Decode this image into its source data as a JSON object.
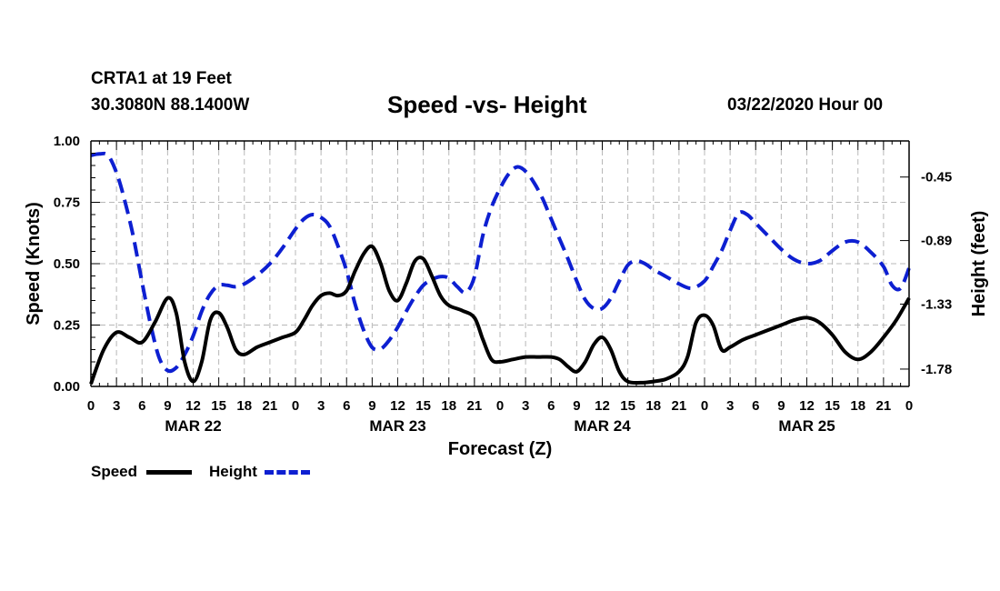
{
  "header": {
    "station": "CRTA1 at 19 Feet",
    "coordinates": "30.3080N 88.1400W",
    "title": "Speed -vs- Height",
    "datetime": "03/22/2020 Hour 00"
  },
  "legend": {
    "speed_label": "Speed",
    "height_label": "Height"
  },
  "colors": {
    "speed": "#000000",
    "height": "#0d1fd1",
    "grid": "#b8b8b8"
  },
  "chart_data": {
    "type": "line",
    "title": "Speed -vs- Height",
    "xlabel": "Forecast (Z)",
    "ylabel_left": "Speed (Knots)",
    "ylabel_right": "Height (feet)",
    "x_unit": "hours from 03/22/2020 00Z",
    "xlim": [
      0,
      96
    ],
    "x_ticks": [
      0,
      3,
      6,
      9,
      12,
      15,
      18,
      21,
      24,
      27,
      30,
      33,
      36,
      39,
      42,
      45,
      48,
      51,
      54,
      57,
      60,
      63,
      66,
      69,
      72,
      75,
      78,
      81,
      84,
      87,
      90,
      93,
      96
    ],
    "x_tick_labels": [
      "0",
      "3",
      "6",
      "9",
      "12",
      "15",
      "18",
      "21",
      "0",
      "3",
      "6",
      "9",
      "12",
      "15",
      "18",
      "21",
      "0",
      "3",
      "6",
      "9",
      "12",
      "15",
      "18",
      "21",
      "0",
      "3",
      "6",
      "9",
      "12",
      "15",
      "18",
      "21",
      "0"
    ],
    "day_labels": [
      {
        "text": "MAR 22",
        "x": 12
      },
      {
        "text": "MAR 23",
        "x": 36
      },
      {
        "text": "MAR 24",
        "x": 60
      },
      {
        "text": "MAR 25",
        "x": 84
      }
    ],
    "y_left": {
      "lim": [
        0,
        1
      ],
      "ticks": [
        0,
        0.25,
        0.5,
        0.75,
        1.0
      ],
      "tick_labels": [
        "0.00",
        "0.25",
        "0.50",
        "0.75",
        "1.00"
      ]
    },
    "y_right": {
      "lim": [
        -1.9,
        -0.2
      ],
      "ticks": [
        -0.45,
        -0.89,
        -1.33,
        -1.78
      ],
      "tick_labels": [
        "-0.45",
        "-0.89",
        "-1.33",
        "-1.78"
      ]
    },
    "grid": true,
    "series": [
      {
        "name": "Speed",
        "axis": "left",
        "style": "solid",
        "points": [
          [
            0,
            0.01
          ],
          [
            1.5,
            0.15
          ],
          [
            3,
            0.22
          ],
          [
            4.5,
            0.2
          ],
          [
            6,
            0.18
          ],
          [
            7.5,
            0.26
          ],
          [
            9,
            0.36
          ],
          [
            10,
            0.3
          ],
          [
            11,
            0.1
          ],
          [
            12,
            0.02
          ],
          [
            13,
            0.1
          ],
          [
            14,
            0.27
          ],
          [
            15,
            0.3
          ],
          [
            16,
            0.24
          ],
          [
            17,
            0.15
          ],
          [
            18,
            0.13
          ],
          [
            19.5,
            0.16
          ],
          [
            21,
            0.18
          ],
          [
            22.5,
            0.2
          ],
          [
            24,
            0.22
          ],
          [
            25,
            0.27
          ],
          [
            26,
            0.33
          ],
          [
            27,
            0.37
          ],
          [
            28,
            0.38
          ],
          [
            29,
            0.37
          ],
          [
            30,
            0.39
          ],
          [
            31,
            0.47
          ],
          [
            32,
            0.54
          ],
          [
            33,
            0.57
          ],
          [
            34,
            0.5
          ],
          [
            35,
            0.39
          ],
          [
            36,
            0.35
          ],
          [
            37,
            0.42
          ],
          [
            38,
            0.51
          ],
          [
            39,
            0.52
          ],
          [
            40,
            0.45
          ],
          [
            41,
            0.37
          ],
          [
            42,
            0.33
          ],
          [
            43.5,
            0.31
          ],
          [
            45,
            0.28
          ],
          [
            46,
            0.19
          ],
          [
            47,
            0.11
          ],
          [
            48,
            0.1
          ],
          [
            49.5,
            0.11
          ],
          [
            51,
            0.12
          ],
          [
            52.5,
            0.12
          ],
          [
            54,
            0.12
          ],
          [
            55,
            0.11
          ],
          [
            56,
            0.08
          ],
          [
            57,
            0.06
          ],
          [
            58,
            0.1
          ],
          [
            59,
            0.17
          ],
          [
            60,
            0.2
          ],
          [
            61,
            0.15
          ],
          [
            62,
            0.06
          ],
          [
            63,
            0.02
          ],
          [
            64.5,
            0.015
          ],
          [
            66,
            0.02
          ],
          [
            67.5,
            0.03
          ],
          [
            69,
            0.06
          ],
          [
            70,
            0.12
          ],
          [
            71,
            0.26
          ],
          [
            72,
            0.29
          ],
          [
            73,
            0.25
          ],
          [
            74,
            0.15
          ],
          [
            75,
            0.16
          ],
          [
            76.5,
            0.19
          ],
          [
            78,
            0.21
          ],
          [
            79.5,
            0.23
          ],
          [
            81,
            0.25
          ],
          [
            82.5,
            0.27
          ],
          [
            84,
            0.28
          ],
          [
            85.5,
            0.26
          ],
          [
            87,
            0.21
          ],
          [
            88.5,
            0.14
          ],
          [
            90,
            0.11
          ],
          [
            91.5,
            0.14
          ],
          [
            93,
            0.2
          ],
          [
            94.5,
            0.27
          ],
          [
            96,
            0.36
          ]
        ]
      },
      {
        "name": "Height",
        "axis": "right",
        "style": "dashed",
        "points": [
          [
            0,
            -0.3
          ],
          [
            1,
            -0.29
          ],
          [
            2,
            -0.3
          ],
          [
            3,
            -0.42
          ],
          [
            4,
            -0.62
          ],
          [
            5,
            -0.87
          ],
          [
            6,
            -1.18
          ],
          [
            7,
            -1.47
          ],
          [
            8,
            -1.7
          ],
          [
            9,
            -1.79
          ],
          [
            10,
            -1.77
          ],
          [
            11,
            -1.68
          ],
          [
            12,
            -1.55
          ],
          [
            13,
            -1.38
          ],
          [
            14,
            -1.26
          ],
          [
            15,
            -1.2
          ],
          [
            16,
            -1.2
          ],
          [
            17,
            -1.21
          ],
          [
            18,
            -1.19
          ],
          [
            19.5,
            -1.13
          ],
          [
            21,
            -1.05
          ],
          [
            22.5,
            -0.94
          ],
          [
            24,
            -0.81
          ],
          [
            25,
            -0.74
          ],
          [
            26,
            -0.71
          ],
          [
            27,
            -0.73
          ],
          [
            28,
            -0.79
          ],
          [
            29,
            -0.93
          ],
          [
            30,
            -1.1
          ],
          [
            31,
            -1.33
          ],
          [
            32,
            -1.51
          ],
          [
            33,
            -1.63
          ],
          [
            34,
            -1.64
          ],
          [
            35,
            -1.58
          ],
          [
            36,
            -1.49
          ],
          [
            37,
            -1.38
          ],
          [
            38,
            -1.28
          ],
          [
            39,
            -1.2
          ],
          [
            40,
            -1.16
          ],
          [
            41,
            -1.14
          ],
          [
            42,
            -1.15
          ],
          [
            43,
            -1.21
          ],
          [
            44,
            -1.25
          ],
          [
            45,
            -1.14
          ],
          [
            46,
            -0.85
          ],
          [
            47,
            -0.66
          ],
          [
            48,
            -0.53
          ],
          [
            49,
            -0.43
          ],
          [
            50,
            -0.38
          ],
          [
            51,
            -0.41
          ],
          [
            52,
            -0.49
          ],
          [
            53,
            -0.6
          ],
          [
            54,
            -0.74
          ],
          [
            55,
            -0.88
          ],
          [
            56,
            -1.02
          ],
          [
            57,
            -1.17
          ],
          [
            58,
            -1.3
          ],
          [
            59,
            -1.36
          ],
          [
            60,
            -1.36
          ],
          [
            61,
            -1.29
          ],
          [
            62,
            -1.17
          ],
          [
            63,
            -1.06
          ],
          [
            64,
            -1.03
          ],
          [
            65,
            -1.05
          ],
          [
            66,
            -1.09
          ],
          [
            67.5,
            -1.14
          ],
          [
            69,
            -1.19
          ],
          [
            70.5,
            -1.22
          ],
          [
            72,
            -1.17
          ],
          [
            73,
            -1.07
          ],
          [
            74,
            -0.96
          ],
          [
            75,
            -0.82
          ],
          [
            76,
            -0.7
          ],
          [
            77,
            -0.71
          ],
          [
            78,
            -0.77
          ],
          [
            79.5,
            -0.86
          ],
          [
            81,
            -0.95
          ],
          [
            82.5,
            -1.02
          ],
          [
            84,
            -1.05
          ],
          [
            85.5,
            -1.03
          ],
          [
            87,
            -0.96
          ],
          [
            88.5,
            -0.9
          ],
          [
            90,
            -0.9
          ],
          [
            91.5,
            -0.97
          ],
          [
            93,
            -1.07
          ],
          [
            94,
            -1.2
          ],
          [
            95,
            -1.22
          ],
          [
            96,
            -1.08
          ]
        ]
      }
    ]
  }
}
